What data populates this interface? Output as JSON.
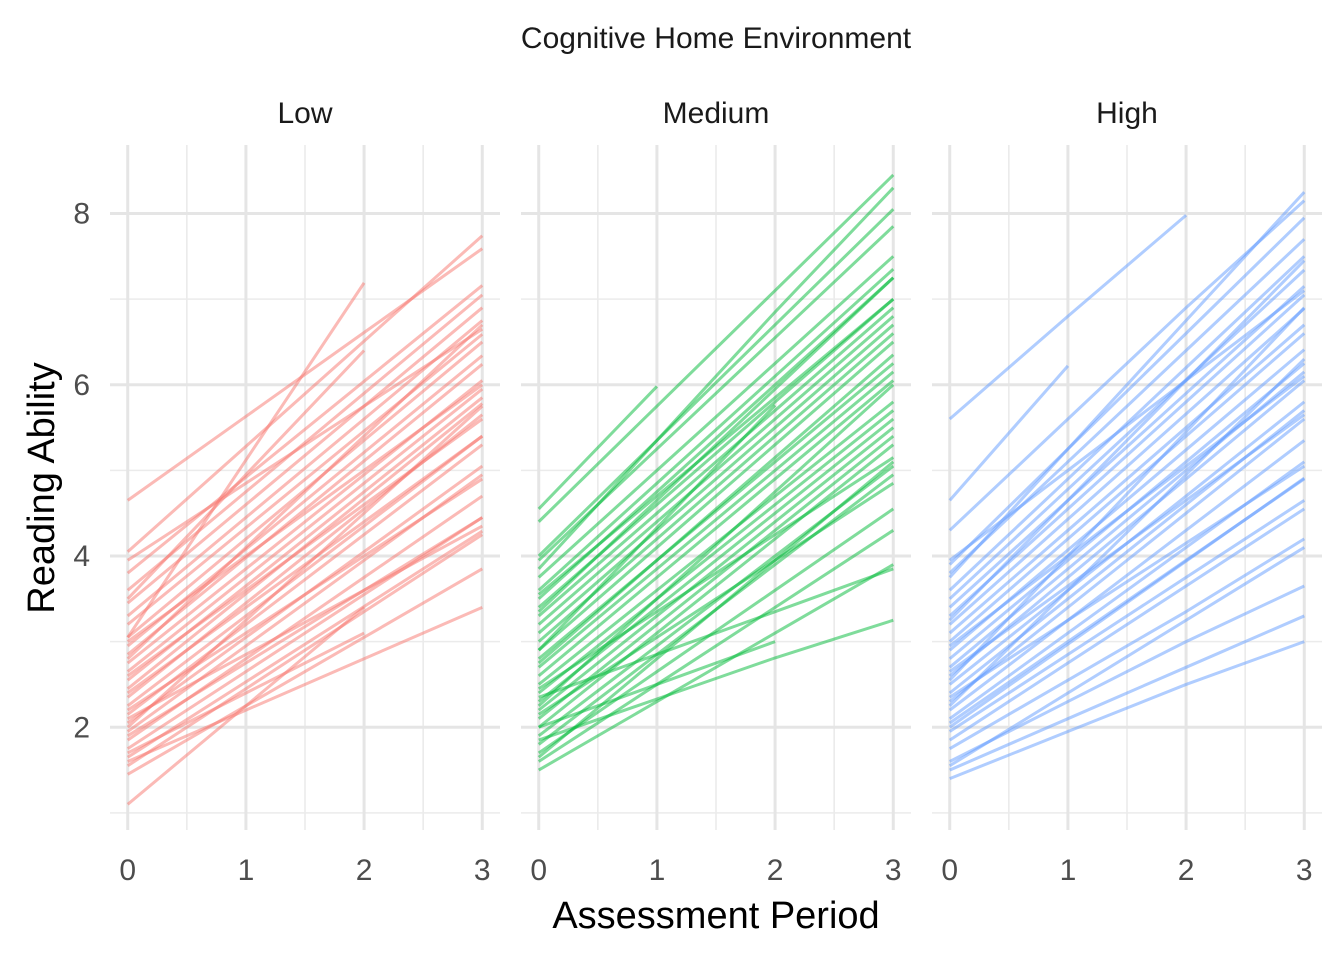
{
  "chart_data": {
    "type": "line",
    "title": "Cognitive Home Environment",
    "xlabel": "Assessment Period",
    "ylabel": "Reading Ability",
    "x": [
      0,
      1,
      2,
      3
    ],
    "xticks": [
      "0",
      "1",
      "2",
      "3"
    ],
    "yticks": [
      "2",
      "4",
      "6",
      "8"
    ],
    "xlim": [
      -0.15,
      3.15
    ],
    "ylim": [
      0.8,
      8.8
    ],
    "grid": true,
    "legend": "none",
    "facets": [
      {
        "label": "Low",
        "color": "#F8766D",
        "series": [
          {
            "values": [
              4.65,
              5.63,
              6.61,
              7.59
            ]
          },
          {
            "values": [
              4.05,
              5.28,
              6.51,
              7.74
            ]
          },
          {
            "values": [
              3.05,
              5.12,
              7.19
            ]
          },
          {
            "values": [
              3.95,
              4.85,
              5.75,
              6.65
            ]
          },
          {
            "values": [
              3.8,
              4.92,
              6.04,
              7.16
            ]
          },
          {
            "values": [
              3.6,
              4.75,
              5.9,
              7.05
            ]
          },
          {
            "values": [
              3.45,
              4.6,
              5.75,
              6.9
            ]
          },
          {
            "values": [
              3.3,
              4.45,
              5.6,
              6.75
            ]
          },
          {
            "values": [
              3.2,
              4.33,
              5.46,
              6.59
            ]
          },
          {
            "values": [
              3.05,
              4.2,
              5.35,
              6.5
            ]
          },
          {
            "values": [
              2.95,
              4.08,
              5.21,
              6.34
            ]
          },
          {
            "values": [
              2.85,
              3.98,
              5.11,
              6.24
            ]
          },
          {
            "values": [
              2.75,
              3.85,
              4.95,
              6.05
            ]
          },
          {
            "values": [
              2.65,
              3.75,
              4.85,
              5.95
            ]
          },
          {
            "values": [
              2.55,
              3.65,
              4.75,
              5.85
            ]
          },
          {
            "values": [
              2.45,
              3.56,
              4.67,
              5.78
            ]
          },
          {
            "values": [
              2.35,
              3.45,
              4.55,
              5.65
            ]
          },
          {
            "values": [
              2.25,
              3.3,
              4.35,
              5.4
            ]
          },
          {
            "values": [
              2.15,
              3.2,
              4.25,
              5.3
            ]
          },
          {
            "values": [
              2.05,
              3.05,
              4.05,
              5.05
            ]
          },
          {
            "values": [
              1.95,
              2.95,
              3.95,
              4.95
            ]
          },
          {
            "values": [
              1.85,
              2.8,
              3.75,
              4.7
            ]
          },
          {
            "values": [
              1.75,
              2.65,
              3.55,
              4.45
            ]
          },
          {
            "values": [
              1.65,
              2.53,
              3.41,
              4.29
            ]
          },
          {
            "values": [
              1.55,
              2.45,
              3.35,
              4.25
            ]
          },
          {
            "values": [
              1.45,
              2.25,
              3.05,
              3.85
            ]
          },
          {
            "values": [
              1.1,
              2.25,
              3.4
            ]
          },
          {
            "values": [
              2.6,
              3.6,
              4.6,
              5.6
            ]
          },
          {
            "values": [
              2.4,
              3.4,
              4.4,
              5.4
            ]
          },
          {
            "values": [
              3.0,
              4.0,
              5.0,
              6.0
            ]
          },
          {
            "values": [
              2.2,
              3.1,
              4.0,
              4.9
            ]
          },
          {
            "values": [
              1.9,
              2.75,
              3.6,
              4.45
            ]
          },
          {
            "values": [
              2.1,
              2.85,
              3.6,
              4.35
            ]
          },
          {
            "values": [
              1.6,
              2.2,
              2.8,
              3.4
            ]
          },
          {
            "values": [
              2.0,
              3.25,
              4.5,
              5.75
            ]
          },
          {
            "values": [
              3.5,
              4.95,
              6.4
            ]
          },
          {
            "values": [
              2.8,
              4.1,
              5.4,
              6.7
            ]
          },
          {
            "values": [
              1.7,
              2.4,
              3.1
            ]
          }
        ]
      },
      {
        "label": "Medium",
        "color": "#00BA38",
        "series": [
          {
            "values": [
              4.55,
              5.98
            ]
          },
          {
            "values": [
              4.4,
              5.75,
              7.1,
              8.45
            ]
          },
          {
            "values": [
              4.0,
              5.35,
              6.7,
              8.05
            ]
          },
          {
            "values": [
              3.95,
              5.25,
              6.55,
              7.85
            ]
          },
          {
            "values": [
              3.75,
              5.0,
              6.25,
              7.5
            ]
          },
          {
            "values": [
              3.6,
              4.85,
              6.1,
              7.35
            ]
          },
          {
            "values": [
              3.5,
              4.75,
              6.0,
              7.25
            ]
          },
          {
            "values": [
              3.4,
              4.6,
              5.8,
              7.0
            ]
          },
          {
            "values": [
              3.3,
              4.5,
              5.7,
              6.9
            ]
          },
          {
            "values": [
              3.2,
              4.4,
              5.6,
              6.8
            ]
          },
          {
            "values": [
              3.1,
              4.3,
              5.5,
              6.7
            ]
          },
          {
            "values": [
              3.0,
              4.2,
              5.4,
              6.6
            ]
          },
          {
            "values": [
              2.9,
              4.1,
              5.3,
              6.5
            ]
          },
          {
            "values": [
              2.8,
              3.95,
              5.1,
              6.25
            ]
          },
          {
            "values": [
              2.7,
              3.85,
              5.0,
              6.15
            ]
          },
          {
            "values": [
              2.6,
              3.75,
              4.9,
              6.05
            ]
          },
          {
            "values": [
              2.5,
              3.6,
              4.7,
              5.8
            ]
          },
          {
            "values": [
              2.4,
              3.5,
              4.6,
              5.7
            ]
          },
          {
            "values": [
              2.3,
              3.4,
              4.5,
              5.6
            ]
          },
          {
            "values": [
              2.2,
              3.3,
              4.4,
              5.5
            ]
          },
          {
            "values": [
              2.1,
              3.2,
              4.3,
              5.4
            ]
          },
          {
            "values": [
              2.0,
              3.1,
              4.2,
              5.3
            ]
          },
          {
            "values": [
              1.9,
              2.95,
              4.0,
              5.05
            ]
          },
          {
            "values": [
              1.8,
              2.85,
              3.9,
              4.95
            ]
          },
          {
            "values": [
              1.7,
              2.65,
              3.6,
              4.55
            ]
          },
          {
            "values": [
              1.6,
              2.5,
              3.4,
              4.3
            ]
          },
          {
            "values": [
              1.5,
              2.3,
              3.1,
              3.9
            ]
          },
          {
            "values": [
              2.0,
              2.5,
              3.0
            ]
          },
          {
            "values": [
              1.85,
              2.33,
              2.81,
              3.25
            ]
          },
          {
            "values": [
              2.35,
              2.85,
              3.35,
              3.85
            ]
          },
          {
            "values": [
              2.45,
              3.35,
              4.25,
              5.15
            ]
          },
          {
            "values": [
              3.85,
              5.35,
              6.85,
              8.3
            ]
          },
          {
            "values": [
              2.9,
              4.33,
              5.76
            ]
          },
          {
            "values": [
              3.35,
              4.65,
              5.95,
              7.25
            ]
          },
          {
            "values": [
              2.75,
              3.95,
              5.15,
              6.35
            ]
          },
          {
            "values": [
              2.25,
              3.5,
              4.75,
              6.0
            ]
          },
          {
            "values": [
              1.65,
              2.8,
              3.95,
              5.1
            ]
          },
          {
            "values": [
              3.55,
              4.7,
              5.85,
              7.0
            ]
          },
          {
            "values": [
              2.15,
              3.05,
              3.95,
              4.85
            ]
          }
        ]
      },
      {
        "label": "High",
        "color": "#619CFF",
        "series": [
          {
            "values": [
              5.6,
              6.8,
              7.98
            ]
          },
          {
            "values": [
              4.65,
              6.22
            ]
          },
          {
            "values": [
              4.3,
              5.6,
              6.9,
              8.15
            ]
          },
          {
            "values": [
              3.9,
              5.25,
              6.6,
              7.95
            ]
          },
          {
            "values": [
              3.8,
              5.1,
              6.4,
              7.7
            ]
          },
          {
            "values": [
              3.6,
              4.9,
              6.2,
              7.5
            ]
          },
          {
            "values": [
              3.5,
              4.78,
              6.06,
              7.34
            ]
          },
          {
            "values": [
              3.4,
              4.65,
              5.9,
              7.15
            ]
          },
          {
            "values": [
              3.3,
              4.55,
              5.8,
              7.05
            ]
          },
          {
            "values": [
              3.2,
              4.43,
              5.66,
              6.89
            ]
          },
          {
            "values": [
              3.1,
              4.3,
              5.5,
              6.7
            ]
          },
          {
            "values": [
              3.0,
              4.2,
              5.4,
              6.6
            ]
          },
          {
            "values": [
              2.9,
              4.07,
              5.24,
              6.41
            ]
          },
          {
            "values": [
              2.8,
              3.95,
              5.1,
              6.25
            ]
          },
          {
            "values": [
              2.7,
              3.85,
              5.0,
              6.15
            ]
          },
          {
            "values": [
              2.6,
              3.75,
              4.9,
              6.05
            ]
          },
          {
            "values": [
              2.5,
              3.6,
              4.7,
              5.8
            ]
          },
          {
            "values": [
              2.4,
              3.5,
              4.6,
              5.7
            ]
          },
          {
            "values": [
              2.3,
              3.4,
              4.5,
              5.6
            ]
          },
          {
            "values": [
              2.2,
              3.25,
              4.3,
              5.35
            ]
          },
          {
            "values": [
              2.1,
              3.1,
              4.1,
              5.1
            ]
          },
          {
            "values": [
              2.0,
              2.97,
              3.94,
              4.91
            ]
          },
          {
            "values": [
              1.95,
              2.85,
              3.75,
              4.65
            ]
          },
          {
            "values": [
              1.85,
              2.75,
              3.65,
              4.55
            ]
          },
          {
            "values": [
              1.75,
              2.55,
              3.35,
              4.2
            ]
          },
          {
            "values": [
              1.6,
              2.3,
              3.0,
              3.65
            ]
          },
          {
            "values": [
              1.5,
              2.1,
              2.7,
              3.3
            ]
          },
          {
            "values": [
              1.4,
              1.95,
              2.5,
              3.0
            ]
          },
          {
            "values": [
              3.95,
              5.0,
              6.05,
              7.1
            ]
          },
          {
            "values": [
              2.55,
              4.0,
              5.45,
              6.9
            ]
          },
          {
            "values": [
              2.25,
              3.6,
              4.95,
              6.3
            ]
          },
          {
            "values": [
              3.25,
              4.65,
              6.05,
              7.45
            ]
          },
          {
            "values": [
              2.65,
              3.65,
              4.65,
              5.65
            ]
          },
          {
            "values": [
              2.05,
              3.0,
              3.95,
              4.9
            ]
          },
          {
            "values": [
              1.55,
              2.4,
              3.25,
              4.1
            ]
          },
          {
            "values": [
              3.75,
              5.25,
              6.75,
              8.25
            ]
          },
          {
            "values": [
              2.95,
              4.0,
              5.05,
              6.1
            ]
          },
          {
            "values": [
              2.35,
              3.25,
              4.15,
              5.05
            ]
          }
        ]
      }
    ]
  }
}
